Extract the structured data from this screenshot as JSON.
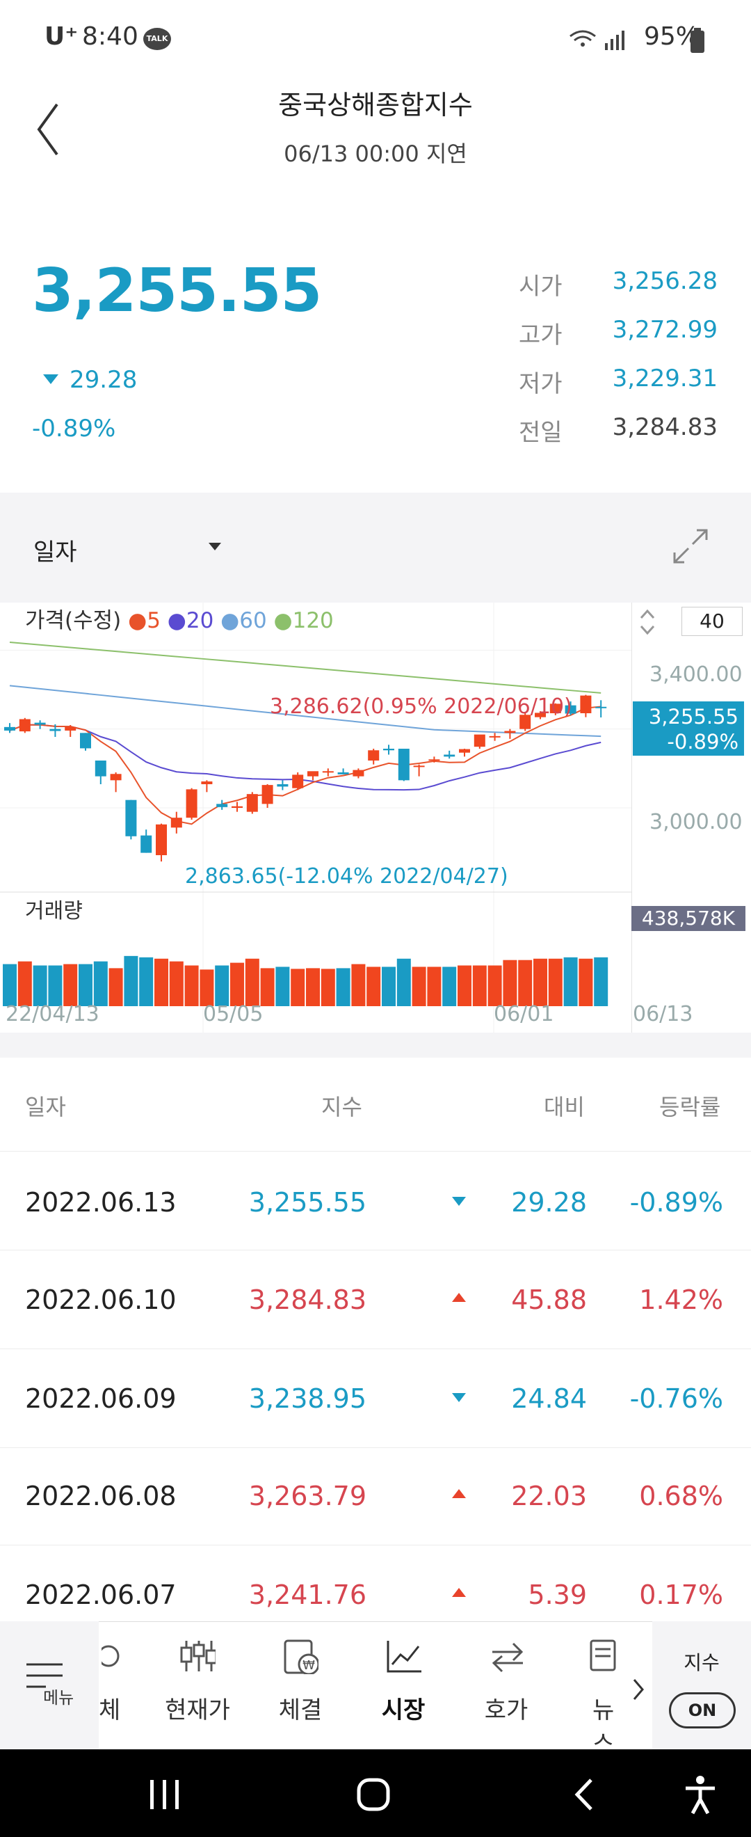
{
  "status_bar": {
    "carrier": "U⁺",
    "time": "8:40",
    "battery": "95%",
    "talk_badge": "TALK"
  },
  "header": {
    "title": "중국상해종합지수",
    "subtitle": "06/13 00:00 지연",
    "back_icon": "chevron-left-icon"
  },
  "summary": {
    "price": "3,255.55",
    "change": "29.28",
    "change_pct": "-0.89%",
    "ohlc": [
      {
        "label": "시가",
        "value": "3,256.28",
        "color": "#1a9bc4"
      },
      {
        "label": "고가",
        "value": "3,272.99",
        "color": "#1a9bc4"
      },
      {
        "label": "저가",
        "value": "3,229.31",
        "color": "#1a9bc4"
      },
      {
        "label": "전일",
        "value": "3,284.83",
        "color": "#444444"
      }
    ]
  },
  "chart_controls": {
    "period": "일자",
    "expand_icon": "expand-icon",
    "ma_input": "40"
  },
  "chart": {
    "legend_title": "가격(수정)",
    "ma": [
      {
        "label": "5",
        "color": "#e8532b"
      },
      {
        "label": "20",
        "color": "#5a4bd1"
      },
      {
        "label": "60",
        "color": "#6fa4d9"
      },
      {
        "label": "120",
        "color": "#8cc06b"
      }
    ],
    "y_ticks": [
      "3,400.00",
      "3,000.00"
    ],
    "price_tag": {
      "price": "3,255.55",
      "pct": "-0.89%"
    },
    "high_note": "3,286.62(0.95% 2022/06/10)",
    "low_note": "2,863.65(-12.04% 2022/04/27)",
    "volume_label": "거래량",
    "volume_tag": "438,578K",
    "x_ticks": [
      "22/04/13",
      "05/05",
      "06/01",
      "06/13"
    ]
  },
  "chart_data": {
    "type": "candlestick",
    "x": [
      "04/13",
      "04/14",
      "04/15",
      "04/18",
      "04/19",
      "04/20",
      "04/21",
      "04/22",
      "04/25",
      "04/26",
      "04/27",
      "04/28",
      "04/29",
      "05/05",
      "05/06",
      "05/09",
      "05/10",
      "05/11",
      "05/12",
      "05/13",
      "05/16",
      "05/17",
      "05/18",
      "05/19",
      "05/20",
      "05/23",
      "05/24",
      "05/25",
      "05/26",
      "05/27",
      "05/30",
      "05/31",
      "06/01",
      "06/02",
      "06/06",
      "06/07",
      "06/08",
      "06/09",
      "06/10",
      "06/13"
    ],
    "ohlc": [
      [
        3205,
        3215,
        3190,
        3196
      ],
      [
        3194,
        3228,
        3190,
        3225
      ],
      [
        3216,
        3222,
        3200,
        3211
      ],
      [
        3200,
        3212,
        3180,
        3195
      ],
      [
        3196,
        3210,
        3180,
        3205
      ],
      [
        3190,
        3190,
        3145,
        3151
      ],
      [
        3120,
        3120,
        3060,
        3080
      ],
      [
        3070,
        3090,
        3040,
        3086
      ],
      [
        3020,
        3020,
        2920,
        2928
      ],
      [
        2930,
        2945,
        2886,
        2886
      ],
      [
        2880,
        2960,
        2864,
        2958
      ],
      [
        2950,
        2990,
        2935,
        2975
      ],
      [
        2975,
        3050,
        2970,
        3047
      ],
      [
        3060,
        3070,
        3040,
        3067
      ],
      [
        3010,
        3020,
        2995,
        3002
      ],
      [
        3000,
        3015,
        2990,
        3004
      ],
      [
        2990,
        3040,
        2985,
        3035
      ],
      [
        3010,
        3060,
        3000,
        3058
      ],
      [
        3060,
        3070,
        3045,
        3054
      ],
      [
        3050,
        3090,
        3045,
        3084
      ],
      [
        3080,
        3090,
        3070,
        3093
      ],
      [
        3090,
        3100,
        3080,
        3093
      ],
      [
        3090,
        3100,
        3085,
        3085
      ],
      [
        3080,
        3100,
        3075,
        3096
      ],
      [
        3120,
        3150,
        3110,
        3146
      ],
      [
        3150,
        3160,
        3135,
        3146
      ],
      [
        3150,
        3150,
        3068,
        3070
      ],
      [
        3105,
        3110,
        3080,
        3107
      ],
      [
        3120,
        3130,
        3115,
        3123
      ],
      [
        3135,
        3145,
        3125,
        3130
      ],
      [
        3140,
        3150,
        3130,
        3149
      ],
      [
        3155,
        3185,
        3150,
        3186
      ],
      [
        3180,
        3190,
        3170,
        3182
      ],
      [
        3190,
        3200,
        3175,
        3195
      ],
      [
        3200,
        3240,
        3195,
        3236
      ],
      [
        3230,
        3245,
        3225,
        3241
      ],
      [
        3240,
        3265,
        3235,
        3264
      ],
      [
        3260,
        3270,
        3235,
        3239
      ],
      [
        3240,
        3286.62,
        3230,
        3284.83
      ],
      [
        3256.28,
        3272.99,
        3229.31,
        3255.55
      ]
    ],
    "volume": [
      62,
      66,
      60,
      60,
      62,
      62,
      66,
      56,
      74,
      72,
      70,
      66,
      60,
      54,
      60,
      64,
      70,
      56,
      58,
      55,
      56,
      55,
      56,
      62,
      58,
      58,
      70,
      58,
      58,
      58,
      60,
      60,
      60,
      68,
      68,
      70,
      70,
      72,
      70,
      72
    ],
    "ylim": [
      2850,
      3450
    ]
  },
  "table": {
    "headers": [
      "일자",
      "지수",
      "대비",
      "등락률"
    ],
    "rows": [
      {
        "date": "2022.06.13",
        "index": "3,255.55",
        "diff": "29.28",
        "rate": "-0.89%",
        "dir": "down"
      },
      {
        "date": "2022.06.10",
        "index": "3,284.83",
        "diff": "45.88",
        "rate": "1.42%",
        "dir": "up"
      },
      {
        "date": "2022.06.09",
        "index": "3,238.95",
        "diff": "24.84",
        "rate": "-0.76%",
        "dir": "down"
      },
      {
        "date": "2022.06.08",
        "index": "3,263.79",
        "diff": "22.03",
        "rate": "0.68%",
        "dir": "up"
      },
      {
        "date": "2022.06.07",
        "index": "3,241.76",
        "diff": "5.39",
        "rate": "0.17%",
        "dir": "up"
      }
    ]
  },
  "bottom_nav": {
    "menu_label": "메뉴",
    "items": [
      {
        "label": "체",
        "icon": "info-icon"
      },
      {
        "label": "현재가",
        "icon": "candle-icon"
      },
      {
        "label": "체결",
        "icon": "won-doc-icon"
      },
      {
        "label": "시장",
        "icon": "trend-icon"
      },
      {
        "label": "호가",
        "icon": "swap-icon"
      },
      {
        "label": "뉴스",
        "icon": "news-icon"
      }
    ],
    "toggle_title": "지수",
    "toggle_state": "ON"
  },
  "system_nav": {
    "recent_icon": "recents-icon",
    "home_icon": "home-icon",
    "back_icon": "back-icon",
    "a11y_icon": "accessibility-icon"
  }
}
